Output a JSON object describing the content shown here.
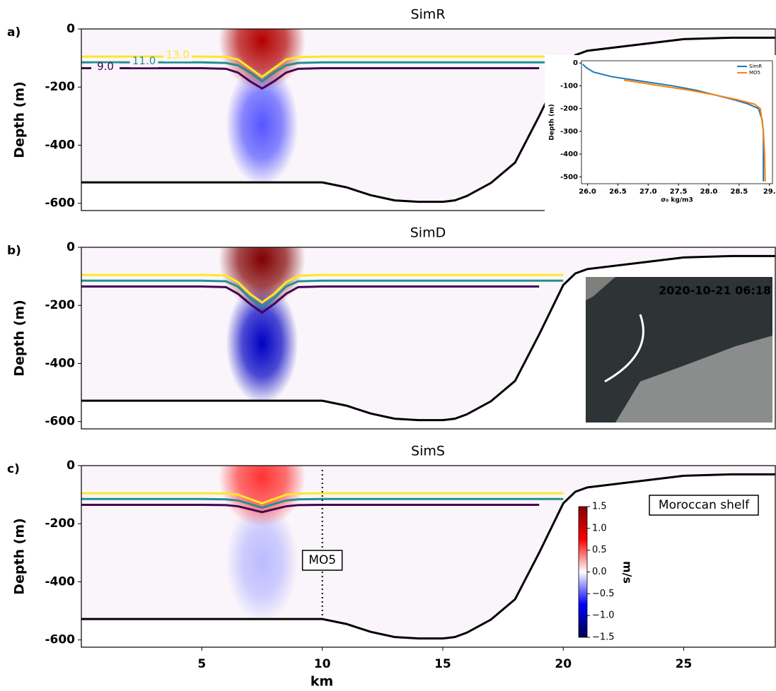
{
  "chart_data": [
    {
      "type": "section",
      "panel": "a)",
      "title": "SimR",
      "ylabel": "Depth (m)",
      "xlim": [
        0,
        28.8
      ],
      "ylim": [
        -625,
        0
      ],
      "yticks": [
        0,
        -200,
        -400,
        -600
      ],
      "x": [
        0,
        1,
        2,
        3,
        4,
        5,
        6,
        6.5,
        7,
        7.5,
        8,
        8.5,
        9,
        10,
        11,
        12,
        13,
        14,
        15,
        15.5,
        16,
        17,
        18,
        19,
        20,
        20.5,
        21,
        23,
        25,
        27,
        28.8
      ],
      "series": [
        {
          "name": "13.0",
          "color": "#fde725",
          "values": [
            -95,
            -95,
            -95,
            -95,
            -95,
            -95,
            -96,
            -105,
            -135,
            -165,
            -135,
            -105,
            -97,
            -95,
            -95,
            -95,
            -95,
            -95,
            -95,
            -95,
            -95,
            -95,
            -95,
            -95,
            -95,
            null,
            null,
            null,
            null,
            null,
            null
          ]
        },
        {
          "name": "11.0",
          "color": "#21918c",
          "values": [
            -115,
            -115,
            -115,
            -115,
            -115,
            -115,
            -117,
            -125,
            -150,
            -180,
            -150,
            -125,
            -117,
            -115,
            -115,
            -115,
            -115,
            -115,
            -115,
            -115,
            -115,
            -115,
            -115,
            -115,
            -115,
            null,
            null,
            null,
            null,
            null,
            null
          ]
        },
        {
          "name": "9.0",
          "color": "#440154",
          "values": [
            -135,
            -135,
            -135,
            -135,
            -135,
            -135,
            -137,
            -150,
            -180,
            -205,
            -180,
            -150,
            -137,
            -135,
            -135,
            -135,
            -135,
            -135,
            -135,
            -135,
            -135,
            -135,
            -135,
            -135,
            null,
            null,
            null,
            null,
            null,
            null,
            null
          ]
        }
      ],
      "bathymetry": {
        "color": "#000000",
        "values": [
          -528,
          -528,
          -528,
          -528,
          -528,
          -528,
          -528,
          -528,
          -528,
          -528,
          -528,
          -528,
          -528,
          -528,
          -545,
          -572,
          -590,
          -595,
          -595,
          -590,
          -575,
          -530,
          -460,
          -300,
          -130,
          -90,
          -75,
          -55,
          -35,
          -30,
          -30
        ]
      },
      "jet": {
        "x": 7.5,
        "surface": 1.2,
        "deep": -0.5
      },
      "inset": {
        "type": "line",
        "xlabel": "σ₀ kg/m3",
        "ylabel": "Depth (m)",
        "xlim": [
          25.9,
          29.05
        ],
        "ylim": [
          -530,
          10
        ],
        "xticks": [
          {
            "value": 26,
            "label": "26.0"
          },
          26.5,
          27,
          {
            "value": 27,
            "label": "27.0"
          },
          27.5,
          {
            "value": 28,
            "label": "28.0"
          },
          28.5,
          {
            "value": 29,
            "label": "29."
          }
        ],
        "yticks": [
          0,
          -100,
          -200,
          -300,
          -400,
          -500
        ],
        "series": [
          {
            "name": "SimR",
            "color": "#1f77b4",
            "x": [
              25.92,
              25.98,
              26.1,
              26.4,
              26.9,
              27.4,
              27.8,
              28.1,
              28.4,
              28.65,
              28.82,
              28.88,
              28.9,
              28.9,
              28.9
            ],
            "values": [
              -5,
              -20,
              -40,
              -60,
              -80,
              -100,
              -120,
              -140,
              -160,
              -180,
              -200,
              -250,
              -300,
              -400,
              -520
            ]
          },
          {
            "name": "MO5",
            "color": "#ff7f0e",
            "x": [
              26.6,
              27.2,
              27.7,
              28.1,
              28.45,
              28.75,
              28.85,
              28.9,
              28.92,
              28.93
            ],
            "values": [
              -75,
              -100,
              -120,
              -140,
              -160,
              -180,
              -200,
              -300,
              -400,
              -520
            ]
          }
        ]
      }
    },
    {
      "type": "section",
      "panel": "b)",
      "title": "SimD",
      "ylabel": "Depth (m)",
      "xlim": [
        0,
        28.8
      ],
      "ylim": [
        -625,
        0
      ],
      "yticks": [
        0,
        -200,
        -400,
        -600
      ],
      "x": [
        0,
        1,
        2,
        3,
        4,
        5,
        6,
        6.5,
        7,
        7.5,
        8,
        8.5,
        9,
        10,
        11,
        12,
        13,
        14,
        15,
        15.5,
        16,
        17,
        18,
        19,
        20,
        20.5,
        21,
        23,
        25,
        27,
        28.8
      ],
      "series": [
        {
          "color": "#fde725",
          "values": [
            -95,
            -95,
            -95,
            -95,
            -95,
            -95,
            -97,
            -120,
            -160,
            -190,
            -160,
            -120,
            -98,
            -95,
            -95,
            -95,
            -95,
            -95,
            -95,
            -95,
            -95,
            -95,
            -95,
            -95,
            -95,
            null,
            null,
            null,
            null,
            null,
            null
          ]
        },
        {
          "color": "#21918c",
          "values": [
            -115,
            -115,
            -115,
            -115,
            -115,
            -115,
            -117,
            -135,
            -175,
            -205,
            -175,
            -135,
            -117,
            -115,
            -115,
            -115,
            -115,
            -115,
            -115,
            -115,
            -115,
            -115,
            -115,
            -115,
            -115,
            null,
            null,
            null,
            null,
            null,
            null
          ]
        },
        {
          "color": "#440154",
          "values": [
            -135,
            -135,
            -135,
            -135,
            -135,
            -135,
            -137,
            -160,
            -195,
            -225,
            -195,
            -160,
            -137,
            -135,
            -135,
            -135,
            -135,
            -135,
            -135,
            -135,
            -135,
            -135,
            -135,
            -135,
            null,
            null,
            null,
            null,
            null,
            null,
            null
          ]
        }
      ],
      "bathymetry": {
        "color": "#000000",
        "values": [
          -528,
          -528,
          -528,
          -528,
          -528,
          -528,
          -528,
          -528,
          -528,
          -528,
          -528,
          -528,
          -528,
          -528,
          -545,
          -572,
          -590,
          -595,
          -595,
          -590,
          -575,
          -530,
          -460,
          -300,
          -130,
          -90,
          -75,
          -55,
          -35,
          -30,
          -30
        ]
      },
      "jet": {
        "x": 7.5,
        "surface": 1.5,
        "deep": -1.0
      },
      "image_timestamp": "2020-10-21 06:18"
    },
    {
      "type": "section",
      "panel": "c)",
      "title": "SimS",
      "ylabel": "Depth (m)",
      "xlabel": "km",
      "xlim": [
        0,
        28.8
      ],
      "ylim": [
        -625,
        0
      ],
      "yticks": [
        0,
        -200,
        -400,
        -600
      ],
      "xticks": [
        5,
        10,
        15,
        20,
        25
      ],
      "x": [
        0,
        1,
        2,
        3,
        4,
        5,
        6,
        6.5,
        7,
        7.5,
        8,
        8.5,
        9,
        10,
        11,
        12,
        13,
        14,
        15,
        15.5,
        16,
        17,
        18,
        19,
        20,
        20.5,
        21,
        23,
        25,
        27,
        28.8
      ],
      "series": [
        {
          "color": "#fde725",
          "values": [
            -95,
            -95,
            -95,
            -95,
            -95,
            -95,
            -96,
            -100,
            -115,
            -130,
            -115,
            -100,
            -96,
            -95,
            -95,
            -95,
            -95,
            -95,
            -95,
            -95,
            -95,
            -95,
            -95,
            -95,
            -95,
            null,
            null,
            null,
            null,
            null,
            null
          ]
        },
        {
          "color": "#21918c",
          "values": [
            -115,
            -115,
            -115,
            -115,
            -115,
            -115,
            -116,
            -120,
            -132,
            -145,
            -132,
            -120,
            -116,
            -115,
            -115,
            -115,
            -115,
            -115,
            -115,
            -115,
            -115,
            -115,
            -115,
            -115,
            -115,
            null,
            null,
            null,
            null,
            null,
            null
          ]
        },
        {
          "color": "#440154",
          "values": [
            -135,
            -135,
            -135,
            -135,
            -135,
            -135,
            -136,
            -140,
            -150,
            -160,
            -150,
            -140,
            -136,
            -135,
            -135,
            -135,
            -135,
            -135,
            -135,
            -135,
            -135,
            -135,
            -135,
            -135,
            null,
            null,
            null,
            null,
            null,
            null,
            null
          ]
        }
      ],
      "bathymetry": {
        "color": "#000000",
        "values": [
          -528,
          -528,
          -528,
          -528,
          -528,
          -528,
          -528,
          -528,
          -528,
          -528,
          -528,
          -528,
          -528,
          -528,
          -545,
          -572,
          -590,
          -595,
          -595,
          -590,
          -575,
          -530,
          -460,
          -300,
          -130,
          -90,
          -75,
          -55,
          -35,
          -30,
          -30
        ]
      },
      "jet": {
        "x": 7.5,
        "surface": 0.6,
        "deep": -0.2
      },
      "mooring_x": 10,
      "annotations": [
        "MO5",
        "Moroccan shelf"
      ],
      "colorbar": {
        "label": "m/s",
        "clim": [
          -1.5,
          1.5
        ],
        "ticks": [
          1.5,
          {
            "value": 1,
            "label": "1.0"
          },
          0.5,
          {
            "value": 0,
            "label": "0.0"
          },
          {
            "value": -0.5,
            "label": "−0.5"
          },
          {
            "value": -1,
            "label": "−1.0"
          },
          {
            "value": -1.5,
            "label": "−1.5"
          }
        ]
      }
    }
  ]
}
